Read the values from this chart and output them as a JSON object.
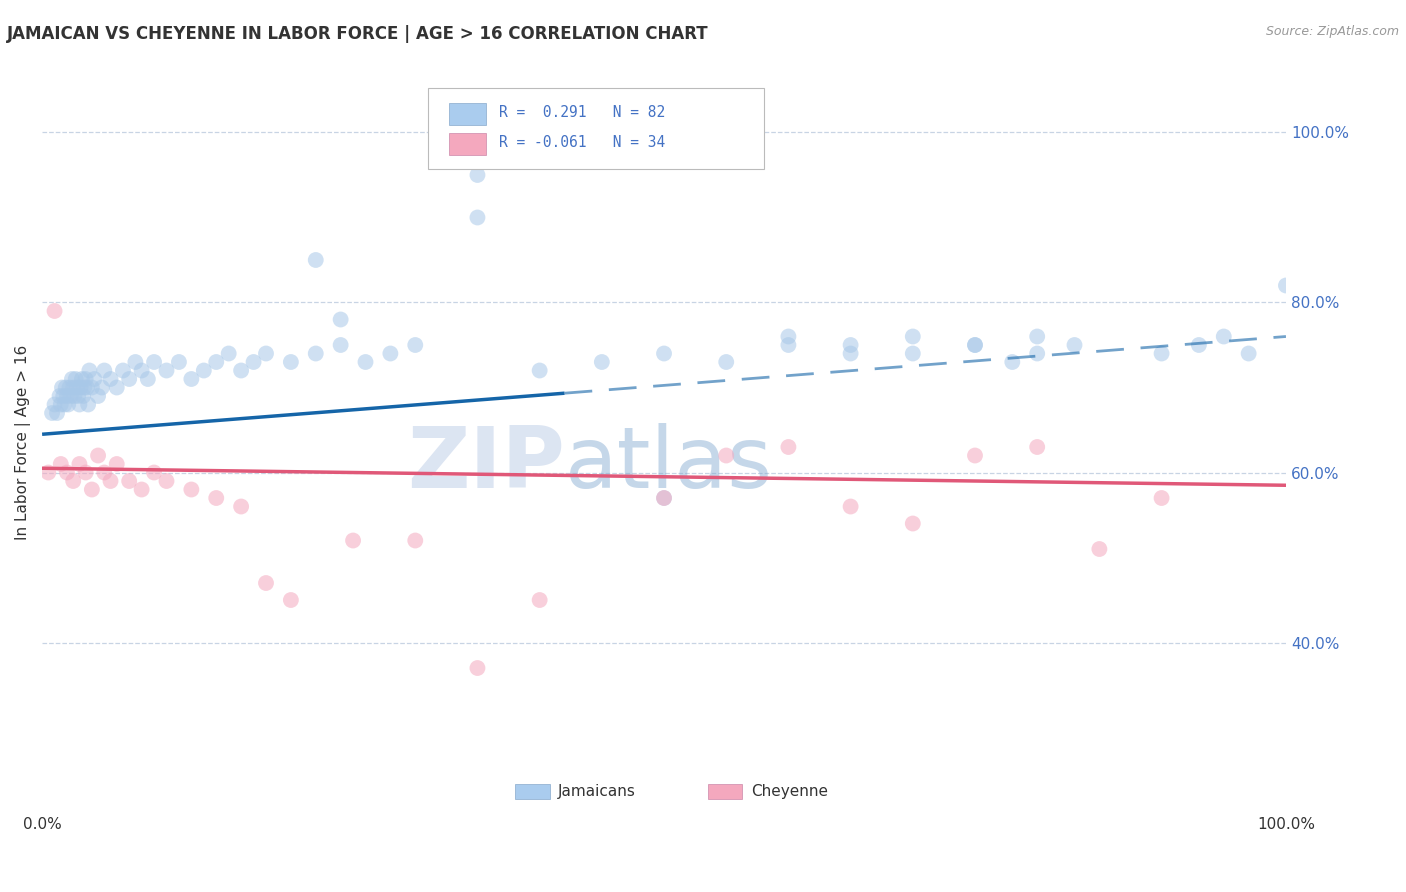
{
  "title": "JAMAICAN VS CHEYENNE IN LABOR FORCE | AGE > 16 CORRELATION CHART",
  "source_text": "Source: ZipAtlas.com",
  "ylabel": "In Labor Force | Age > 16",
  "legend_blue_text": "R =  0.291   N = 82",
  "legend_pink_text": "R = -0.061   N = 34",
  "legend_label_blue": "Jamaicans",
  "legend_label_pink": "Cheyenne",
  "watermark_zip": "ZIP",
  "watermark_atlas": "atlas",
  "blue_scatter_color": "#a8c8e8",
  "pink_scatter_color": "#f4a8be",
  "blue_line_color": "#1565a8",
  "pink_line_color": "#e05878",
  "background_color": "#ffffff",
  "grid_color": "#c8d4e4",
  "text_color": "#333333",
  "right_axis_color": "#4472c4",
  "legend_text_color": "#4472c4",
  "title_fontsize": 12,
  "axis_fontsize": 11,
  "source_fontsize": 9,
  "scatter_size": 130,
  "scatter_alpha": 0.55,
  "blue_intercept": 0.645,
  "blue_slope": 0.115,
  "pink_intercept": 0.605,
  "pink_slope": -0.02,
  "blue_x": [
    0.8,
    1.0,
    1.2,
    1.4,
    1.5,
    1.6,
    1.7,
    1.8,
    1.9,
    2.0,
    2.1,
    2.2,
    2.3,
    2.4,
    2.5,
    2.6,
    2.7,
    2.8,
    2.9,
    3.0,
    3.1,
    3.2,
    3.3,
    3.4,
    3.5,
    3.6,
    3.7,
    3.8,
    4.0,
    4.2,
    4.5,
    4.8,
    5.0,
    5.5,
    6.0,
    6.5,
    7.0,
    7.5,
    8.0,
    8.5,
    9.0,
    10.0,
    11.0,
    12.0,
    13.0,
    14.0,
    15.0,
    16.0,
    17.0,
    18.0,
    20.0,
    22.0,
    24.0,
    26.0,
    28.0,
    30.0,
    35.0,
    40.0,
    45.0,
    50.0,
    55.0,
    60.0,
    65.0,
    70.0,
    75.0,
    80.0,
    35.0,
    22.0,
    24.0,
    50.0,
    60.0,
    65.0,
    70.0,
    75.0,
    78.0,
    80.0,
    83.0,
    90.0,
    93.0,
    95.0,
    97.0,
    100.0
  ],
  "blue_y": [
    67,
    68,
    67,
    69,
    68,
    70,
    69,
    68,
    70,
    69,
    68,
    70,
    69,
    71,
    70,
    69,
    71,
    70,
    69,
    68,
    70,
    71,
    69,
    70,
    71,
    70,
    68,
    72,
    70,
    71,
    69,
    70,
    72,
    71,
    70,
    72,
    71,
    73,
    72,
    71,
    73,
    72,
    73,
    71,
    72,
    73,
    74,
    72,
    73,
    74,
    73,
    74,
    75,
    73,
    74,
    75,
    95,
    72,
    73,
    74,
    73,
    75,
    74,
    76,
    75,
    74,
    90,
    85,
    78,
    57,
    76,
    75,
    74,
    75,
    73,
    76,
    75,
    74,
    75,
    76,
    74,
    82
  ],
  "pink_x": [
    0.5,
    1.0,
    1.5,
    2.0,
    2.5,
    3.0,
    3.5,
    4.0,
    4.5,
    5.0,
    5.5,
    6.0,
    7.0,
    8.0,
    9.0,
    10.0,
    12.0,
    14.0,
    16.0,
    18.0,
    20.0,
    25.0,
    30.0,
    35.0,
    40.0,
    50.0,
    55.0,
    60.0,
    65.0,
    70.0,
    75.0,
    80.0,
    85.0,
    90.0
  ],
  "pink_y": [
    60,
    79,
    61,
    60,
    59,
    61,
    60,
    58,
    62,
    60,
    59,
    61,
    59,
    58,
    60,
    59,
    58,
    57,
    56,
    47,
    45,
    52,
    52,
    37,
    45,
    57,
    62,
    63,
    56,
    54,
    62,
    63,
    51,
    57
  ]
}
